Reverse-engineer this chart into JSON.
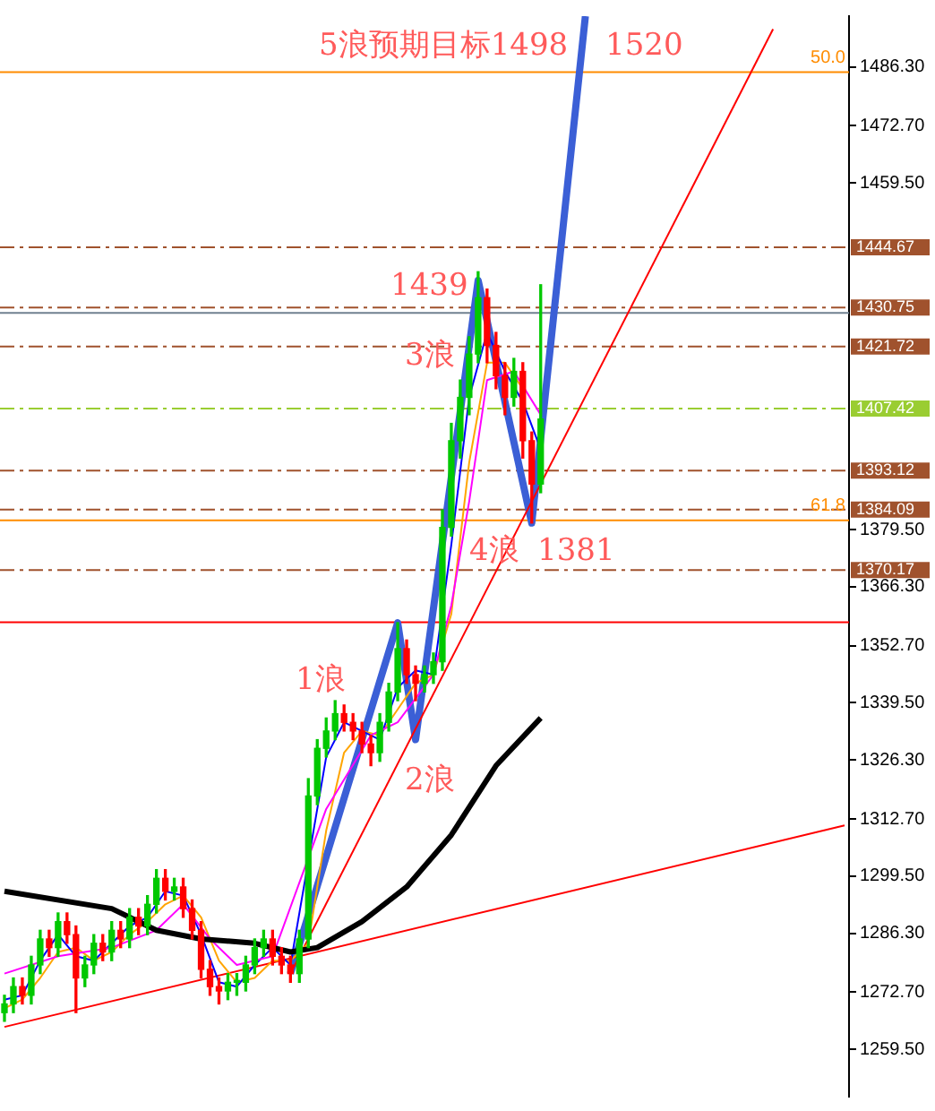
{
  "chart_data": {
    "type": "candlestick",
    "tick_labels": "y",
    "legend": false,
    "grid": false,
    "marker": "none",
    "categories": [
      null,
      null,
      null,
      null,
      null,
      null,
      null,
      null,
      null,
      null,
      null,
      null,
      null,
      null,
      null,
      null,
      null,
      null,
      null,
      null,
      null,
      null,
      null,
      null,
      null,
      null,
      null,
      null,
      null,
      null,
      null,
      null,
      null,
      null,
      null,
      null,
      null,
      null,
      null,
      null,
      null,
      null,
      null,
      null,
      null,
      null,
      null,
      null,
      null,
      null,
      null,
      null,
      null,
      null,
      null,
      null,
      null,
      null,
      null,
      null,
      null,
      null,
      null,
      null,
      null,
      null,
      null,
      null,
      null,
      null,
      null,
      null,
      null,
      null,
      null,
      null,
      null,
      null,
      null,
      null,
      null,
      null,
      null,
      null,
      null,
      null,
      null,
      null,
      null,
      null,
      null,
      null,
      null,
      null,
      null
    ],
    "ohlc": [
      [
        1268,
        1272,
        1266,
        1270
      ],
      [
        1270,
        1276,
        1268,
        1274
      ],
      [
        1274,
        1276,
        1270,
        1272
      ],
      [
        1272,
        1281,
        1270,
        1279
      ],
      [
        1279,
        1287,
        1277,
        1285
      ],
      [
        1285,
        1287,
        1281,
        1283
      ],
      [
        1283,
        1291,
        1281,
        1289
      ],
      [
        1289,
        1291,
        1284,
        1286
      ],
      [
        1286,
        1288,
        1268,
        1276
      ],
      [
        1276,
        1281,
        1274,
        1279
      ],
      [
        1279,
        1286,
        1277,
        1284
      ],
      [
        1284,
        1286,
        1280,
        1282
      ],
      [
        1282,
        1289,
        1280,
        1287
      ],
      [
        1287,
        1289,
        1283,
        1285
      ],
      [
        1285,
        1292,
        1283,
        1290
      ],
      [
        1290,
        1292,
        1286,
        1288
      ],
      [
        1288,
        1295,
        1286,
        1293
      ],
      [
        1293,
        1301,
        1291,
        1299
      ],
      [
        1299,
        1301,
        1294,
        1296
      ],
      [
        1296,
        1299,
        1294,
        1297
      ],
      [
        1297,
        1299,
        1290,
        1292
      ],
      [
        1292,
        1294,
        1285,
        1287
      ],
      [
        1287,
        1289,
        1276,
        1278
      ],
      [
        1278,
        1280,
        1272,
        1274
      ],
      [
        1274,
        1276,
        1270,
        1273
      ],
      [
        1273,
        1277,
        1271,
        1275
      ],
      [
        1275,
        1277,
        1272,
        1275
      ],
      [
        1275,
        1281,
        1273,
        1279
      ],
      [
        1279,
        1285,
        1277,
        1283
      ],
      [
        1283,
        1287,
        1281,
        1285
      ],
      [
        1285,
        1287,
        1279,
        1281
      ],
      [
        1281,
        1283,
        1277,
        1279
      ],
      [
        1279,
        1281,
        1275,
        1277
      ],
      [
        1277,
        1287,
        1275,
        1285
      ],
      [
        1285,
        1322,
        1283,
        1318
      ],
      [
        1318,
        1331,
        1316,
        1329
      ],
      [
        1329,
        1336,
        1327,
        1333
      ],
      [
        1333,
        1340,
        1331,
        1337
      ],
      [
        1337,
        1339,
        1333,
        1335
      ],
      [
        1335,
        1337,
        1331,
        1333
      ],
      [
        1333,
        1335,
        1328,
        1330
      ],
      [
        1330,
        1332,
        1325,
        1328
      ],
      [
        1328,
        1337,
        1326,
        1335
      ],
      [
        1335,
        1344,
        1333,
        1342
      ],
      [
        1342,
        1358,
        1340,
        1352
      ],
      [
        1352,
        1354,
        1344,
        1346
      ],
      [
        1346,
        1348,
        1340,
        1344
      ],
      [
        1344,
        1348,
        1342,
        1346
      ],
      [
        1346,
        1351,
        1344,
        1349
      ],
      [
        1349,
        1384,
        1347,
        1380
      ],
      [
        1380,
        1404,
        1378,
        1400
      ],
      [
        1400,
        1414,
        1396,
        1410
      ],
      [
        1410,
        1424,
        1406,
        1420
      ],
      [
        1420,
        1439,
        1418,
        1433
      ],
      [
        1433,
        1435,
        1418,
        1422
      ],
      [
        1422,
        1425,
        1412,
        1415
      ],
      [
        1415,
        1418,
        1406,
        1410
      ],
      [
        1410,
        1419,
        1408,
        1416
      ],
      [
        1416,
        1418,
        1396,
        1400
      ],
      [
        1400,
        1402,
        1381,
        1390
      ],
      [
        1390,
        1436,
        1388,
        1405
      ],
      null,
      null,
      null,
      null,
      null,
      null,
      null,
      null,
      null,
      null,
      null,
      null,
      null,
      null,
      null,
      null,
      null,
      null,
      null,
      null,
      null,
      null,
      null,
      null,
      null,
      null,
      null,
      null,
      null,
      null,
      null,
      null,
      null,
      null
    ],
    "colors": [
      "#00c800",
      "#00c800",
      "#ff0000",
      "#00c800",
      "#00c800",
      "#ff0000",
      "#00c800",
      "#ff0000",
      "#ff0000",
      "#00c800",
      "#00c800",
      "#ff0000",
      "#00c800",
      "#ff0000",
      "#00c800",
      "#ff0000",
      "#00c800",
      "#00c800",
      "#ff0000",
      "#00c800",
      "#ff0000",
      "#ff0000",
      "#ff0000",
      "#ff0000",
      "#ff0000",
      "#00c800",
      "#00c800",
      "#00c800",
      "#00c800",
      "#00c800",
      "#ff0000",
      "#ff0000",
      "#ff0000",
      "#00c800",
      "#00c800",
      "#00c800",
      "#00c800",
      "#00c800",
      "#ff0000",
      "#ff0000",
      "#ff0000",
      "#ff0000",
      "#00c800",
      "#00c800",
      "#00c800",
      "#ff0000",
      "#ff0000",
      "#00c800",
      "#00c800",
      "#00c800",
      "#00c800",
      "#00c800",
      "#00c800",
      "#00c800",
      "#ff0000",
      "#ff0000",
      "#ff0000",
      "#00c800",
      "#ff0000",
      "#ff0000",
      "#00c800",
      null,
      null,
      null,
      null,
      null,
      null,
      null,
      null,
      null,
      null,
      null,
      null,
      null,
      null,
      null,
      null,
      null,
      null,
      null,
      null,
      null,
      null,
      null,
      null,
      null,
      null,
      null,
      null,
      null,
      null,
      null,
      null,
      null,
      null
    ],
    "series": [
      {
        "type": "line",
        "color": "#000000",
        "values": [
          1296,
          null,
          null,
          null,
          null,
          null,
          null,
          null,
          null,
          null,
          null,
          null,
          1292,
          null,
          null,
          null,
          null,
          1287,
          null,
          null,
          null,
          null,
          1285,
          null,
          null,
          null,
          null,
          null,
          1284,
          null,
          null,
          null,
          1282,
          null,
          null,
          1283,
          null,
          null,
          null,
          null,
          1289,
          null,
          null,
          null,
          null,
          1297,
          null,
          null,
          null,
          null,
          1309,
          null,
          null,
          null,
          null,
          1325,
          null,
          null,
          null,
          null,
          1336,
          null,
          null,
          null,
          null,
          null,
          null,
          null,
          null,
          null,
          null,
          null,
          null,
          null,
          null,
          null,
          null,
          null,
          null,
          null,
          null,
          null,
          null,
          null,
          null,
          null,
          null,
          null,
          null,
          null,
          null,
          null,
          null,
          null,
          null
        ]
      },
      {
        "type": "line",
        "color": "#ff00ff",
        "values": [
          1277,
          null,
          null,
          null,
          null,
          null,
          1281,
          null,
          null,
          null,
          null,
          null,
          1283,
          null,
          null,
          null,
          null,
          1287,
          null,
          null,
          1293,
          null,
          null,
          1285,
          null,
          null,
          1279,
          null,
          null,
          null,
          1281,
          null,
          null,
          null,
          null,
          null,
          1315,
          null,
          null,
          null,
          null,
          1332,
          null,
          null,
          1335,
          null,
          null,
          null,
          1346,
          null,
          1362,
          null,
          1386,
          null,
          1414,
          null,
          null,
          1416,
          null,
          null,
          1406,
          null,
          null,
          null,
          null,
          null,
          null,
          null,
          null,
          null,
          null,
          null,
          null,
          null,
          null,
          null,
          null,
          null,
          null,
          null,
          null,
          null,
          null,
          null,
          null,
          null,
          null,
          null,
          null,
          null,
          null,
          null,
          null,
          null,
          null
        ]
      },
      {
        "type": "line",
        "color": "#0000ff",
        "values": [
          1271,
          null,
          1272,
          null,
          1280,
          null,
          1286,
          null,
          1281,
          null,
          1280,
          null,
          1284,
          null,
          1288,
          null,
          1290,
          null,
          1296,
          null,
          1295,
          null,
          1286,
          null,
          1275,
          null,
          1274,
          null,
          1279,
          null,
          1283,
          null,
          1279,
          null,
          null,
          null,
          1327,
          null,
          1335,
          null,
          1333,
          null,
          1331,
          null,
          1343,
          null,
          1347,
          null,
          1346,
          null,
          1376,
          null,
          1410,
          null,
          1425,
          null,
          1416,
          null,
          1409,
          null,
          1398,
          null,
          null,
          null,
          null,
          null,
          null,
          null,
          null,
          null,
          null,
          null,
          null,
          null,
          null,
          null,
          null,
          null,
          null,
          null,
          null,
          null,
          null,
          null,
          null,
          null,
          null,
          null,
          null,
          null,
          null,
          null,
          null,
          null,
          null
        ]
      },
      {
        "type": "line",
        "color": "#ffa500",
        "values": [
          1269,
          null,
          1271,
          null,
          1276,
          null,
          1282,
          null,
          1283,
          null,
          1280,
          null,
          1282,
          null,
          1286,
          null,
          1289,
          null,
          1293,
          null,
          1295,
          null,
          1290,
          null,
          1280,
          null,
          1275,
          null,
          1276,
          null,
          1280,
          null,
          1280,
          null,
          1284,
          null,
          1310,
          null,
          1328,
          null,
          1333,
          null,
          1332,
          null,
          1338,
          null,
          1344,
          null,
          1346,
          null,
          1360,
          null,
          1395,
          null,
          1418,
          null,
          1418,
          null,
          1412,
          null,
          null,
          null,
          null,
          null,
          null,
          null,
          null,
          null,
          null,
          null,
          null,
          null,
          null,
          null,
          null,
          null,
          null,
          null,
          null,
          null,
          null,
          null,
          null,
          null,
          null,
          null,
          null,
          null,
          null,
          null,
          null,
          null,
          null,
          null,
          null
        ]
      },
      {
        "type": "line",
        "color": "#ff0000",
        "values": [
          null,
          null,
          null,
          null,
          null,
          null,
          null,
          null,
          null,
          null,
          null,
          null,
          null,
          null,
          null,
          null,
          null,
          null,
          null,
          null,
          null,
          null,
          null,
          null,
          null,
          null,
          null,
          null,
          null,
          null,
          null,
          null,
          1277,
          null,
          null,
          null,
          null,
          null,
          null,
          null,
          null,
          null,
          null,
          null,
          null,
          null,
          null,
          null,
          null,
          null,
          null,
          null,
          null,
          null,
          null,
          null,
          null,
          null,
          null,
          null,
          null,
          null,
          null,
          null,
          null,
          null,
          null,
          null,
          null,
          null,
          null,
          null,
          null,
          null,
          null,
          null,
          null,
          null,
          null,
          null,
          null,
          null,
          null,
          null,
          null,
          null,
          1495,
          null,
          null,
          null,
          null,
          null,
          null,
          null,
          null
        ]
      },
      {
        "type": "line",
        "color": "#ff0000",
        "values": [
          1264.7,
          null,
          null,
          null,
          null,
          null,
          null,
          null,
          null,
          null,
          null,
          null,
          null,
          null,
          null,
          null,
          null,
          null,
          null,
          null,
          null,
          null,
          null,
          null,
          null,
          null,
          null,
          null,
          null,
          null,
          null,
          null,
          null,
          null,
          null,
          null,
          null,
          null,
          null,
          null,
          null,
          null,
          null,
          null,
          null,
          null,
          null,
          null,
          null,
          null,
          null,
          null,
          null,
          null,
          null,
          null,
          null,
          null,
          null,
          null,
          null,
          null,
          null,
          null,
          null,
          null,
          null,
          null,
          null,
          null,
          null,
          null,
          null,
          null,
          null,
          null,
          null,
          null,
          null,
          null,
          null,
          null,
          null,
          null,
          null,
          null,
          null,
          null,
          null,
          null,
          null,
          null,
          null,
          null,
          1311.2
        ]
      },
      {
        "type": "line",
        "color": "#3b5fd6",
        "values": [
          null,
          null,
          null,
          null,
          null,
          null,
          null,
          null,
          null,
          null,
          null,
          null,
          null,
          null,
          null,
          null,
          null,
          null,
          null,
          null,
          null,
          null,
          null,
          null,
          null,
          null,
          null,
          null,
          null,
          null,
          null,
          null,
          1277,
          null,
          null,
          null,
          null,
          null,
          null,
          null,
          null,
          null,
          null,
          null,
          1358,
          null,
          1331,
          null,
          null,
          null,
          null,
          null,
          null,
          1437,
          null,
          null,
          null,
          null,
          null,
          1381,
          null,
          null,
          null,
          null,
          null,
          1498,
          null,
          null,
          null,
          null,
          null,
          null,
          null,
          null,
          null,
          null,
          null,
          null,
          null,
          null,
          null,
          null,
          null,
          null,
          null,
          null,
          null,
          null,
          null,
          null,
          null,
          null,
          null,
          null,
          null
        ]
      }
    ],
    "ylim": [
      1248.6,
      1498
    ],
    "yticks": [
      {
        "value": 1486.3,
        "label": "1486.30"
      },
      {
        "value": 1472.7,
        "label": "1472.70"
      },
      {
        "value": 1459.5,
        "label": "1459.50"
      },
      {
        "value": 1379.5,
        "label": "1379.50"
      },
      {
        "value": 1366.3,
        "label": "1366.30"
      },
      {
        "value": 1352.7,
        "label": "1352.70"
      },
      {
        "value": 1339.5,
        "label": "1339.50"
      },
      {
        "value": 1326.3,
        "label": "1326.30"
      },
      {
        "value": 1312.7,
        "label": "1312.70"
      },
      {
        "value": 1299.5,
        "label": "1299.50"
      },
      {
        "value": 1286.3,
        "label": "1286.30"
      },
      {
        "value": 1272.7,
        "label": "1272.70"
      },
      {
        "value": 1259.5,
        "label": "1259.50"
      }
    ],
    "ref_lines": [
      {
        "axis": "y",
        "value": 1485.1,
        "color": "#ff8c00",
        "line_style": "solid"
      },
      {
        "axis": "y",
        "value": 1444.67,
        "label": "1444.67",
        "color": "#a0522d",
        "line_style": "dashed"
      },
      {
        "axis": "y",
        "value": 1430.75,
        "label": "1430.75",
        "color": "#a0522d",
        "line_style": "dashed"
      },
      {
        "axis": "y",
        "value": 1429.5,
        "color": "#708090",
        "line_style": "solid"
      },
      {
        "axis": "y",
        "value": 1421.72,
        "label": "1421.72",
        "color": "#a0522d",
        "line_style": "dashed"
      },
      {
        "axis": "y",
        "value": 1407.42,
        "label": "1407.42",
        "color": "#9acd32",
        "line_style": "dashed"
      },
      {
        "axis": "y",
        "value": 1393.12,
        "label": "1393.12",
        "color": "#a0522d",
        "line_style": "dashed"
      },
      {
        "axis": "y",
        "value": 1384.09,
        "label": "1384.09",
        "color": "#a0522d",
        "line_style": "dashed"
      },
      {
        "axis": "y",
        "value": 1381.6,
        "color": "#ff8c00",
        "line_style": "solid"
      },
      {
        "axis": "y",
        "value": 1370.17,
        "label": "1370.17",
        "color": "#a0522d",
        "line_style": "dashed"
      },
      {
        "axis": "y",
        "value": 1358.1,
        "color": "#ff0000",
        "line_style": "solid"
      }
    ],
    "annotations": [
      "5浪预期目标1498",
      "1520",
      "1439",
      "3浪",
      "1浪",
      "2浪",
      "4浪",
      "1381",
      {
        "text": "50.0",
        "y": 1485.1
      },
      {
        "text": "61.8",
        "y": 1381.6
      }
    ]
  }
}
